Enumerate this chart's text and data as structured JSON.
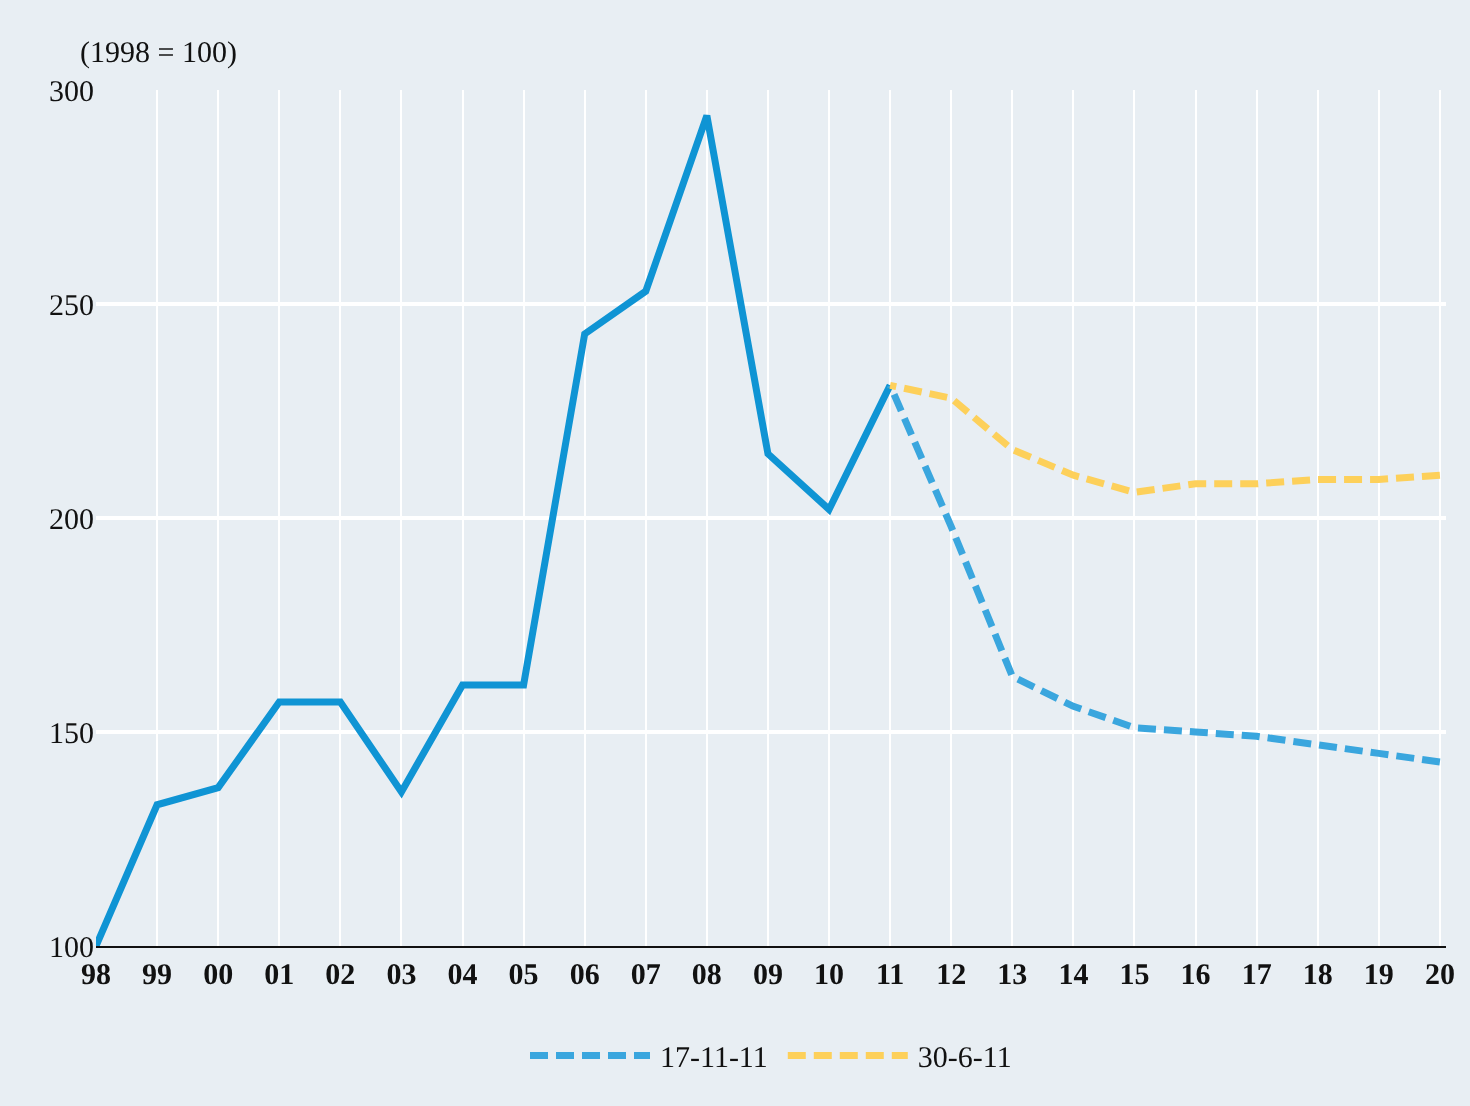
{
  "chart_data": {
    "type": "line",
    "ylabel": "(1998 = 100)",
    "categories": [
      "98",
      "99",
      "00",
      "01",
      "02",
      "03",
      "04",
      "05",
      "06",
      "07",
      "08",
      "09",
      "10",
      "11",
      "12",
      "13",
      "14",
      "15",
      "16",
      "17",
      "18",
      "19",
      "20"
    ],
    "series": [
      {
        "color": "#0f94d4",
        "line_style": "solid",
        "values": [
          100,
          133,
          137,
          157,
          157,
          136,
          161,
          161,
          243,
          253,
          294,
          215,
          202,
          231,
          null,
          null,
          null,
          null,
          null,
          null,
          null,
          null,
          null
        ]
      },
      {
        "name": "17-11-11",
        "color": "#3aa6de",
        "line_style": "dashed",
        "values": [
          null,
          null,
          null,
          null,
          null,
          null,
          null,
          null,
          null,
          null,
          null,
          null,
          null,
          231,
          198,
          163,
          156,
          151,
          150,
          149,
          147,
          145,
          143
        ]
      },
      {
        "name": "30-6-11",
        "color": "#fdd05a",
        "line_style": "dashed",
        "values": [
          null,
          null,
          null,
          null,
          null,
          null,
          null,
          null,
          null,
          null,
          null,
          null,
          null,
          231,
          228,
          216,
          210,
          206,
          208,
          208,
          209,
          209,
          210
        ]
      }
    ],
    "ylim": [
      100,
      300
    ],
    "yticks": [
      100,
      150,
      200,
      250,
      300
    ],
    "grid": true,
    "legend": "bottom",
    "marker": "none"
  }
}
